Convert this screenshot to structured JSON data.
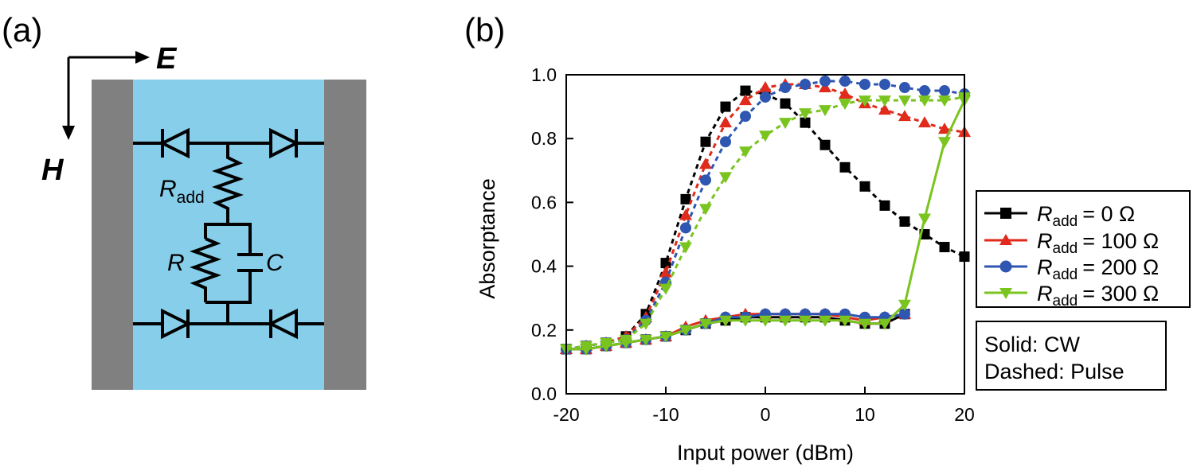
{
  "panel_a": {
    "label": "(a)",
    "vector_e": "E",
    "vector_h": "H",
    "r_add_main": "R",
    "r_add_sub": "add",
    "r_label": "R",
    "c_label": "C",
    "colors": {
      "electrode": "#808080",
      "substrate": "#87ceeb",
      "wire": "#000000"
    },
    "icons": [
      "diode-icon",
      "resistor-icon",
      "capacitor-icon",
      "arrow-icon"
    ]
  },
  "panel_b": {
    "label": "(b)",
    "legend_box": {
      "labels": [
        "R",
        "R",
        "R",
        "R"
      ],
      "subscripts": [
        "add",
        "add",
        "add",
        "add"
      ],
      "suffixes": [
        "= 0 Ω",
        "= 100 Ω",
        "= 200 Ω",
        "= 300 Ω"
      ]
    },
    "note_box": {
      "line1": "Solid: CW",
      "line2": "Dashed: Pulse"
    }
  },
  "chart_data": {
    "type": "line",
    "xlabel": "Input power (dBm)",
    "ylabel": "Absorptance",
    "xlim": [
      -20,
      20
    ],
    "ylim": [
      0,
      1
    ],
    "xticks": [
      -20,
      -10,
      0,
      10,
      20
    ],
    "yticks": [
      0.0,
      0.2,
      0.4,
      0.6,
      0.8,
      1.0
    ],
    "xtick_labels": [
      "-20",
      "-10",
      "0",
      "10",
      "20"
    ],
    "ytick_labels": [
      "0.0",
      "0.2",
      "0.4",
      "0.6",
      "0.8",
      "1.0"
    ],
    "grid": false,
    "legend_position": "right",
    "series": [
      {
        "label": "R_add = 0 Ω",
        "color": "#000000",
        "marker": "square",
        "style": "solid",
        "x": [
          -20,
          -18,
          -16,
          -14,
          -12,
          -10,
          -8,
          -6,
          -4,
          -2,
          0,
          2,
          4,
          6,
          8,
          10,
          12,
          14
        ],
        "y": [
          0.14,
          0.14,
          0.15,
          0.16,
          0.17,
          0.18,
          0.2,
          0.22,
          0.23,
          0.24,
          0.24,
          0.24,
          0.24,
          0.24,
          0.23,
          0.22,
          0.22,
          0.25
        ]
      },
      {
        "label": "R_add = 0 Ω",
        "color": "#000000",
        "marker": "square",
        "style": "dashed",
        "x": [
          -20,
          -18,
          -16,
          -14,
          -12,
          -10,
          -8,
          -6,
          -4,
          -2,
          0,
          2,
          4,
          6,
          8,
          10,
          12,
          14,
          16,
          18,
          20
        ],
        "y": [
          0.14,
          0.15,
          0.16,
          0.18,
          0.25,
          0.41,
          0.61,
          0.79,
          0.9,
          0.95,
          0.94,
          0.91,
          0.85,
          0.78,
          0.71,
          0.65,
          0.59,
          0.54,
          0.5,
          0.46,
          0.43
        ]
      },
      {
        "label": "R_add = 100 Ω",
        "color": "#e02a1c",
        "marker": "triangle-up",
        "style": "solid",
        "x": [
          -20,
          -18,
          -16,
          -14,
          -12,
          -10,
          -8,
          -6,
          -4,
          -2,
          0,
          2,
          4,
          6,
          8,
          10,
          12,
          14
        ],
        "y": [
          0.14,
          0.14,
          0.15,
          0.16,
          0.17,
          0.18,
          0.21,
          0.23,
          0.24,
          0.25,
          0.25,
          0.25,
          0.25,
          0.25,
          0.24,
          0.23,
          0.24,
          0.25
        ]
      },
      {
        "label": "R_add = 100 Ω",
        "color": "#e02a1c",
        "marker": "triangle-up",
        "style": "dashed",
        "x": [
          -20,
          -18,
          -16,
          -14,
          -12,
          -10,
          -8,
          -6,
          -4,
          -2,
          0,
          2,
          4,
          6,
          8,
          10,
          12,
          14,
          16,
          18,
          20
        ],
        "y": [
          0.14,
          0.15,
          0.16,
          0.18,
          0.24,
          0.38,
          0.56,
          0.72,
          0.85,
          0.92,
          0.96,
          0.97,
          0.97,
          0.96,
          0.94,
          0.91,
          0.89,
          0.87,
          0.85,
          0.83,
          0.82
        ]
      },
      {
        "label": "R_add = 200 Ω",
        "color": "#2f56b0",
        "marker": "circle",
        "style": "solid",
        "x": [
          -20,
          -18,
          -16,
          -14,
          -12,
          -10,
          -8,
          -6,
          -4,
          -2,
          0,
          2,
          4,
          6,
          8,
          10,
          12,
          14
        ],
        "y": [
          0.14,
          0.14,
          0.15,
          0.16,
          0.17,
          0.18,
          0.2,
          0.22,
          0.24,
          0.24,
          0.25,
          0.25,
          0.25,
          0.25,
          0.25,
          0.24,
          0.24,
          0.25
        ]
      },
      {
        "label": "R_add = 200 Ω",
        "color": "#2f56b0",
        "marker": "circle",
        "style": "dashed",
        "x": [
          -20,
          -18,
          -16,
          -14,
          -12,
          -10,
          -8,
          -6,
          -4,
          -2,
          0,
          2,
          4,
          6,
          8,
          10,
          12,
          14,
          16,
          18,
          20
        ],
        "y": [
          0.14,
          0.15,
          0.16,
          0.17,
          0.23,
          0.35,
          0.52,
          0.67,
          0.79,
          0.87,
          0.93,
          0.96,
          0.97,
          0.98,
          0.98,
          0.97,
          0.97,
          0.96,
          0.95,
          0.95,
          0.94
        ]
      },
      {
        "label": "R_add = 300 Ω",
        "color": "#7ac41f",
        "marker": "triangle-down",
        "style": "solid",
        "x": [
          -20,
          -18,
          -16,
          -14,
          -12,
          -10,
          -8,
          -6,
          -4,
          -2,
          0,
          2,
          4,
          6,
          8,
          10,
          12,
          14,
          16,
          18,
          20
        ],
        "y": [
          0.14,
          0.14,
          0.15,
          0.16,
          0.17,
          0.18,
          0.2,
          0.22,
          0.23,
          0.23,
          0.23,
          0.23,
          0.23,
          0.23,
          0.23,
          0.22,
          0.22,
          0.28,
          0.55,
          0.79,
          0.92
        ]
      },
      {
        "label": "R_add = 300 Ω",
        "color": "#7ac41f",
        "marker": "triangle-down",
        "style": "dashed",
        "x": [
          -20,
          -18,
          -16,
          -14,
          -12,
          -10,
          -8,
          -6,
          -4,
          -2,
          0,
          2,
          4,
          6,
          8,
          10,
          12,
          14,
          16,
          18,
          20
        ],
        "y": [
          0.14,
          0.15,
          0.16,
          0.17,
          0.22,
          0.33,
          0.46,
          0.58,
          0.68,
          0.76,
          0.81,
          0.85,
          0.88,
          0.89,
          0.91,
          0.92,
          0.92,
          0.92,
          0.92,
          0.92,
          0.93
        ]
      }
    ]
  }
}
